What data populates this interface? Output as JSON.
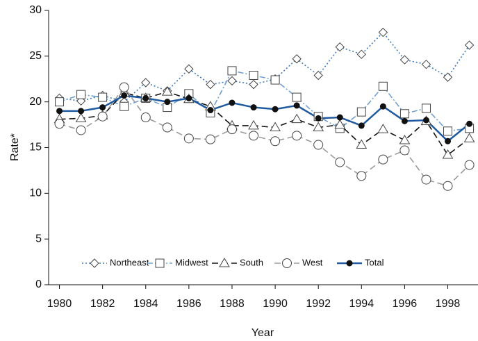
{
  "chart_data": {
    "type": "line",
    "x_label": "Year",
    "y_label": "Rate*",
    "x": [
      1980,
      1981,
      1982,
      1983,
      1984,
      1985,
      1986,
      1987,
      1988,
      1989,
      1990,
      1991,
      1992,
      1993,
      1994,
      1995,
      1996,
      1997,
      1998,
      1999
    ],
    "series": [
      {
        "name": "Northeast",
        "color": "#3a78b8",
        "dash": "dotted",
        "marker": "diamond",
        "values": [
          20.4,
          20.1,
          20.7,
          20.0,
          22.1,
          21.2,
          23.6,
          21.9,
          22.3,
          21.9,
          22.5,
          24.7,
          22.9,
          26.0,
          25.2,
          27.6,
          24.6,
          24.1,
          22.7,
          26.2
        ]
      },
      {
        "name": "Midwest",
        "color": "#6f9fd0",
        "dash": "dashdot",
        "marker": "square",
        "values": [
          20.0,
          20.8,
          20.5,
          19.5,
          20.4,
          19.4,
          20.9,
          18.8,
          23.4,
          22.9,
          22.4,
          20.5,
          18.4,
          17.1,
          18.9,
          21.7,
          18.7,
          19.3,
          16.8,
          17.1
        ]
      },
      {
        "name": "South",
        "color": "#111111",
        "dash": "dashed",
        "marker": "triangle",
        "values": [
          18.1,
          18.2,
          18.5,
          21.0,
          20.4,
          21.1,
          20.3,
          19.5,
          17.4,
          17.4,
          17.2,
          18.1,
          17.2,
          17.5,
          15.3,
          17.0,
          15.8,
          17.9,
          14.2,
          16.0
        ]
      },
      {
        "name": "West",
        "color": "#9a9a9a",
        "dash": "dashed",
        "marker": "circle",
        "values": [
          17.6,
          16.9,
          18.4,
          21.6,
          18.3,
          17.2,
          16.0,
          15.9,
          17.0,
          16.3,
          15.7,
          16.3,
          15.3,
          13.4,
          11.9,
          13.7,
          14.7,
          11.5,
          10.8,
          13.1
        ]
      },
      {
        "name": "Total",
        "color": "#1f5aa0",
        "dash": "solid",
        "marker": "dot",
        "values": [
          19.0,
          19.0,
          19.4,
          20.7,
          20.4,
          20.0,
          20.4,
          19.1,
          19.9,
          19.4,
          19.2,
          19.6,
          18.2,
          18.3,
          17.4,
          19.5,
          17.9,
          18.0,
          15.7,
          17.6
        ]
      }
    ],
    "xlim": [
      1979.5,
      1999.4
    ],
    "xticks": [
      1980,
      1982,
      1984,
      1986,
      1988,
      1990,
      1992,
      1994,
      1996,
      1998
    ],
    "ylim": [
      0,
      30
    ],
    "yticks": [
      0,
      5,
      10,
      15,
      20,
      25,
      30
    ],
    "legend": "bottom"
  }
}
